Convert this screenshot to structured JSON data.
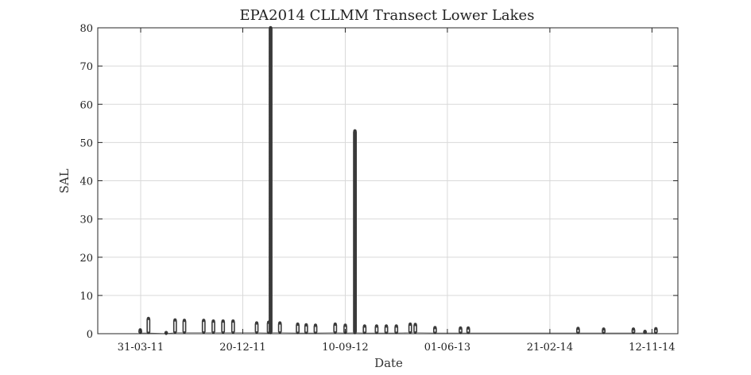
{
  "chart_data": {
    "type": "scatter",
    "title": "EPA2014 CLLMM Transect Lower Lakes",
    "xlabel": "Date",
    "ylabel": "SAL",
    "ylim": [
      0,
      80
    ],
    "xlim": [
      "2010-12-10",
      "2015-01-18"
    ],
    "yticks": [
      0,
      10,
      20,
      30,
      40,
      50,
      60,
      70,
      80
    ],
    "xticks": [
      {
        "date": "2011-03-31",
        "label": "31-03-11"
      },
      {
        "date": "2011-12-20",
        "label": "20-12-11"
      },
      {
        "date": "2012-09-10",
        "label": "10-09-12"
      },
      {
        "date": "2013-06-01",
        "label": "01-06-13"
      },
      {
        "date": "2014-02-21",
        "label": "21-02-14"
      },
      {
        "date": "2014-11-12",
        "label": "12-11-14"
      }
    ],
    "grid": true,
    "series": [
      {
        "marker": "dot",
        "color": "#3a3a3a",
        "points": [
          {
            "date": "2011-03-30",
            "min": 0.2,
            "max": 1.0
          },
          {
            "date": "2011-04-20",
            "min": 0.2,
            "max": 4.0
          },
          {
            "date": "2011-06-05",
            "min": 0.0,
            "max": 0.3
          },
          {
            "date": "2011-06-28",
            "min": 0.3,
            "max": 3.6
          },
          {
            "date": "2011-07-22",
            "min": 0.3,
            "max": 3.5
          },
          {
            "date": "2011-09-10",
            "min": 0.3,
            "max": 3.5
          },
          {
            "date": "2011-10-05",
            "min": 0.3,
            "max": 3.3
          },
          {
            "date": "2011-10-30",
            "min": 0.3,
            "max": 3.3
          },
          {
            "date": "2011-11-25",
            "min": 0.3,
            "max": 3.3
          },
          {
            "date": "2012-01-25",
            "min": 0.3,
            "max": 2.8
          },
          {
            "date": "2012-02-25",
            "min": 0.2,
            "max": 3.0
          },
          {
            "date": "2012-03-01",
            "min": 0.3,
            "max": 80.0
          },
          {
            "date": "2012-03-25",
            "min": 0.3,
            "max": 2.8
          },
          {
            "date": "2012-05-10",
            "min": 0.2,
            "max": 2.5
          },
          {
            "date": "2012-06-01",
            "min": 0.2,
            "max": 2.3
          },
          {
            "date": "2012-06-25",
            "min": 0.2,
            "max": 2.2
          },
          {
            "date": "2012-08-15",
            "min": 0.3,
            "max": 2.5
          },
          {
            "date": "2012-09-10",
            "min": 0.2,
            "max": 2.2
          },
          {
            "date": "2012-10-05",
            "min": 0.3,
            "max": 53.0
          },
          {
            "date": "2012-10-30",
            "min": 0.2,
            "max": 2.0
          },
          {
            "date": "2012-11-30",
            "min": 0.2,
            "max": 2.0
          },
          {
            "date": "2012-12-25",
            "min": 0.2,
            "max": 2.0
          },
          {
            "date": "2013-01-20",
            "min": 0.2,
            "max": 2.0
          },
          {
            "date": "2013-02-25",
            "min": 0.3,
            "max": 2.5
          },
          {
            "date": "2013-03-10",
            "min": 0.3,
            "max": 2.4
          },
          {
            "date": "2013-04-30",
            "min": 0.2,
            "max": 1.6
          },
          {
            "date": "2013-07-05",
            "min": 0.2,
            "max": 1.5
          },
          {
            "date": "2013-07-25",
            "min": 0.2,
            "max": 1.5
          },
          {
            "date": "2014-05-05",
            "min": 0.2,
            "max": 1.4
          },
          {
            "date": "2014-07-10",
            "min": 0.2,
            "max": 1.2
          },
          {
            "date": "2014-09-25",
            "min": 0.2,
            "max": 1.2
          },
          {
            "date": "2014-10-25",
            "min": 0.2,
            "max": 0.6
          },
          {
            "date": "2014-11-22",
            "min": 0.2,
            "max": 1.3
          }
        ]
      }
    ]
  }
}
